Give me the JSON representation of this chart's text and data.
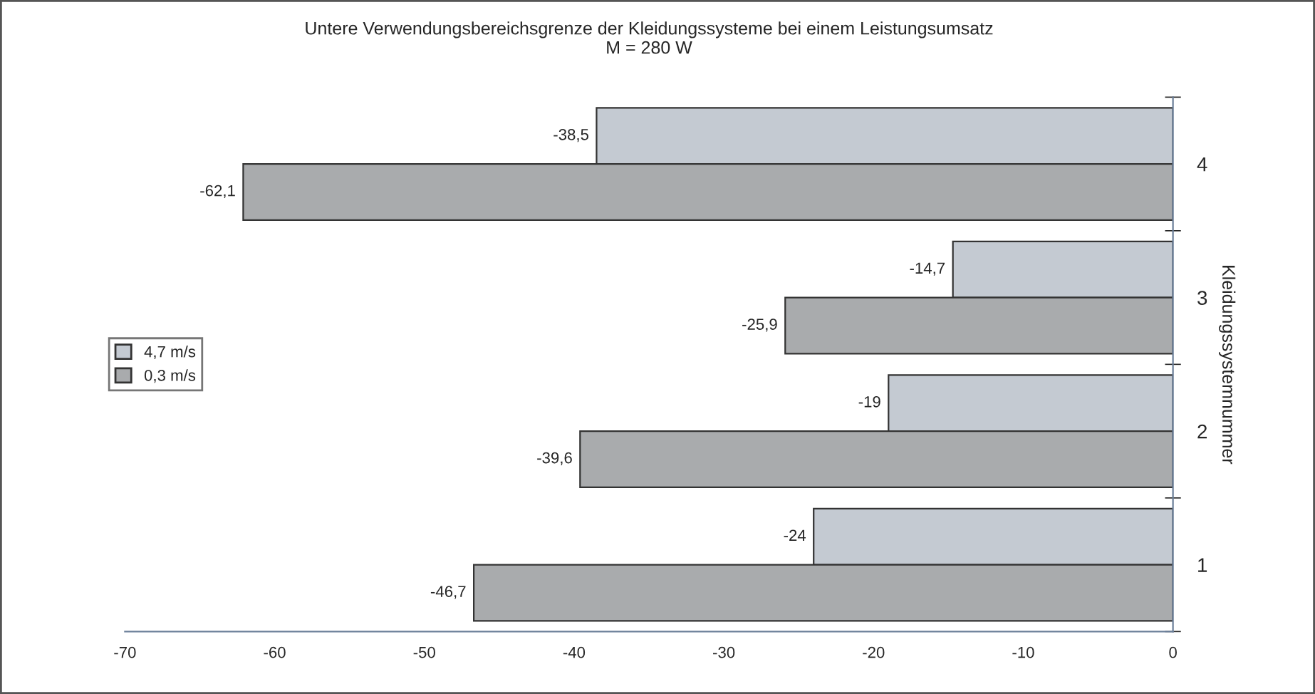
{
  "chart_data": {
    "type": "bar",
    "orientation": "horizontal",
    "title": "Untere Verwendungsbereichsgrenze der Kleidungssysteme bei einem Leistungsumsatz\nM = 280 W",
    "ylabel": "Kleidungssystemnummer",
    "categories": [
      "4",
      "3",
      "2",
      "1"
    ],
    "series": [
      {
        "name": "4,7 m/s",
        "color": "#c4cad2",
        "values": [
          -38.5,
          -14.7,
          -19,
          -24
        ],
        "value_labels": [
          "-38,5",
          "-14,7",
          "-19",
          "-24"
        ]
      },
      {
        "name": "0,3 m/s",
        "color": "#a9abad",
        "values": [
          -62.1,
          -25.9,
          -39.6,
          -46.7
        ],
        "value_labels": [
          "-62,1",
          "-25,9",
          "-39,6",
          "-46,7"
        ]
      }
    ],
    "xlim": [
      -70,
      0
    ],
    "xticks": [
      -70,
      -60,
      -50,
      -40,
      -30,
      -20,
      -10,
      0
    ],
    "grid": false,
    "legend": "left"
  }
}
